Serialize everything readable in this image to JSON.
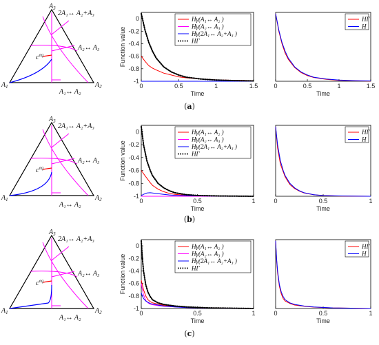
{
  "colors": {
    "H_A1A2": "#ff0000",
    "H_A2A3": "#ff00ff",
    "H_2A1A2A3": "#0000ff",
    "H_Gamma": "#000000",
    "triangle_edge": "#000000",
    "axis": "#000000"
  },
  "triangle": {
    "vertex_labels": {
      "A1": "A",
      "A2": "A",
      "A3": "A"
    },
    "vertex_subs": {
      "A1": "1",
      "A2": "2",
      "A3": "3"
    },
    "reaction_labels": [
      "2A₁↔ A₂+A₃",
      "A₂↔ A₃",
      "A₁↔ A₂"
    ],
    "equilibrium_label": "c",
    "equilibrium_sup": "eq"
  },
  "legend_main": [
    "Hγ(A₁↔ A₂ )",
    "Hγ(A₂↔ A₃ )",
    "Hγ(2A₁↔ A₂+A₃ )",
    "HΓ"
  ],
  "legend_right": [
    "HΓ",
    "H"
  ],
  "panel_captions": [
    "a",
    "b",
    "c"
  ],
  "chart_data": [
    {
      "type": "line",
      "panel": "a",
      "position": "middle",
      "xlabel": "Time",
      "ylabel": "Function value",
      "xlim": [
        0,
        1.5
      ],
      "ylim": [
        -1,
        0.1
      ],
      "xticks": [
        0,
        0.5,
        1,
        1.5
      ],
      "yticks": [
        -1,
        -0.8,
        -0.6,
        -0.4,
        -0.2,
        0
      ],
      "x": [
        0,
        0.05,
        0.1,
        0.15,
        0.2,
        0.3,
        0.4,
        0.5,
        0.6,
        0.8,
        1.0,
        1.25,
        1.5
      ],
      "series": [
        {
          "name": "Hγ(A₁↔ A₂ )",
          "color": "#ff0000",
          "style": "solid",
          "values": [
            -0.6,
            -0.68,
            -0.75,
            -0.79,
            -0.82,
            -0.87,
            -0.9,
            -0.93,
            -0.945,
            -0.965,
            -0.978,
            -0.985,
            -0.99
          ]
        },
        {
          "name": "Hγ(A₂↔ A₃ )",
          "color": "#ff00ff",
          "style": "solid",
          "values": [
            -1.0,
            -1.0,
            -1.0,
            -1.0,
            -1.0,
            -1.0,
            -1.0,
            -1.0,
            -1.0,
            -1.0,
            -1.0,
            -1.0,
            -1.0
          ]
        },
        {
          "name": "Hγ(2A₁↔ A₂+A₃ )",
          "color": "#0000ff",
          "style": "solid",
          "values": [
            -1.0,
            -1.0,
            -1.0,
            -1.0,
            -1.0,
            -1.0,
            -1.0,
            -1.0,
            -1.0,
            -1.0,
            -1.0,
            -1.0,
            -1.0
          ]
        },
        {
          "name": "HΓ",
          "color": "#000000",
          "style": "dotted",
          "values": [
            0.08,
            -0.18,
            -0.38,
            -0.52,
            -0.63,
            -0.77,
            -0.85,
            -0.9,
            -0.935,
            -0.965,
            -0.98,
            -0.99,
            -0.995
          ]
        }
      ]
    },
    {
      "type": "line",
      "panel": "a",
      "position": "right",
      "xlabel": "Time",
      "ylabel": "",
      "xlim": [
        0,
        1.5
      ],
      "ylim": [
        -1,
        0.1
      ],
      "xticks": [
        0,
        0.5,
        1,
        1.5
      ],
      "yticks": [],
      "x": [
        0,
        0.05,
        0.1,
        0.15,
        0.2,
        0.3,
        0.4,
        0.5,
        0.6,
        0.8,
        1.0,
        1.25,
        1.5
      ],
      "series": [
        {
          "name": "HΓ",
          "color": "#ff0000",
          "style": "solid",
          "values": [
            0.08,
            -0.2,
            -0.4,
            -0.55,
            -0.65,
            -0.78,
            -0.86,
            -0.91,
            -0.94,
            -0.97,
            -0.985,
            -0.993,
            -0.997
          ]
        },
        {
          "name": "H",
          "color": "#0000ff",
          "style": "solid",
          "values": [
            0.08,
            -0.18,
            -0.38,
            -0.52,
            -0.63,
            -0.77,
            -0.85,
            -0.9,
            -0.935,
            -0.965,
            -0.98,
            -0.99,
            -0.995
          ]
        }
      ]
    },
    {
      "type": "line",
      "panel": "b",
      "position": "middle",
      "xlabel": "Time",
      "ylabel": "Function value",
      "xlim": [
        0,
        1
      ],
      "ylim": [
        -1,
        0.1
      ],
      "xticks": [
        0,
        0.5,
        1
      ],
      "yticks": [
        -1,
        -0.8,
        -0.6,
        -0.4,
        -0.2,
        0
      ],
      "x": [
        0,
        0.02,
        0.05,
        0.08,
        0.1,
        0.15,
        0.2,
        0.25,
        0.3,
        0.4,
        0.5,
        0.7,
        1.0
      ],
      "series": [
        {
          "name": "Hγ(A₁↔ A₂ )",
          "color": "#ff0000",
          "style": "solid",
          "values": [
            -0.6,
            -0.65,
            -0.72,
            -0.79,
            -0.83,
            -0.89,
            -0.93,
            -0.955,
            -0.97,
            -0.985,
            -0.992,
            -0.997,
            -1.0
          ]
        },
        {
          "name": "Hγ(A₂↔ A₃ )",
          "color": "#ff00ff",
          "style": "solid",
          "values": [
            -1.0,
            -1.0,
            -1.0,
            -1.0,
            -1.0,
            -1.0,
            -1.0,
            -1.0,
            -1.0,
            -1.0,
            -1.0,
            -1.0,
            -1.0
          ]
        },
        {
          "name": "Hγ(2A₁↔ A₂+A₃ )",
          "color": "#0000ff",
          "style": "solid",
          "values": [
            -0.99,
            -0.97,
            -0.95,
            -0.945,
            -0.95,
            -0.96,
            -0.97,
            -0.98,
            -0.985,
            -0.99,
            -0.995,
            -0.998,
            -1.0
          ]
        },
        {
          "name": "HΓ",
          "color": "#000000",
          "style": "dotted",
          "values": [
            0.08,
            -0.2,
            -0.45,
            -0.6,
            -0.68,
            -0.8,
            -0.87,
            -0.915,
            -0.945,
            -0.975,
            -0.988,
            -0.996,
            -1.0
          ]
        }
      ]
    },
    {
      "type": "line",
      "panel": "b",
      "position": "right",
      "xlabel": "Time",
      "ylabel": "",
      "xlim": [
        0,
        1
      ],
      "ylim": [
        -1,
        0.1
      ],
      "xticks": [
        0,
        0.5,
        1
      ],
      "yticks": [],
      "x": [
        0,
        0.02,
        0.05,
        0.08,
        0.1,
        0.15,
        0.2,
        0.25,
        0.3,
        0.4,
        0.5,
        0.7,
        1.0
      ],
      "series": [
        {
          "name": "HΓ",
          "color": "#ff0000",
          "style": "solid",
          "values": [
            0.08,
            -0.25,
            -0.5,
            -0.62,
            -0.7,
            -0.82,
            -0.88,
            -0.92,
            -0.95,
            -0.976,
            -0.99,
            -0.997,
            -1.0
          ]
        },
        {
          "name": "H",
          "color": "#0000ff",
          "style": "solid",
          "values": [
            0.08,
            -0.2,
            -0.45,
            -0.6,
            -0.68,
            -0.8,
            -0.87,
            -0.915,
            -0.945,
            -0.975,
            -0.988,
            -0.996,
            -1.0
          ]
        }
      ]
    },
    {
      "type": "line",
      "panel": "c",
      "position": "middle",
      "xlabel": "Time",
      "ylabel": "Function value",
      "xlim": [
        0,
        1
      ],
      "ylim": [
        -1,
        0.1
      ],
      "xticks": [
        0,
        0.5,
        1
      ],
      "yticks": [
        -1,
        -0.8,
        -0.6,
        -0.4,
        -0.2,
        0
      ],
      "x": [
        0,
        0.01,
        0.02,
        0.04,
        0.06,
        0.08,
        0.1,
        0.15,
        0.2,
        0.3,
        0.4,
        0.6,
        1.0
      ],
      "series": [
        {
          "name": "Hγ(A₁↔ A₂ )",
          "color": "#ff0000",
          "style": "solid",
          "values": [
            -0.55,
            -0.62,
            -0.7,
            -0.8,
            -0.86,
            -0.89,
            -0.91,
            -0.93,
            -0.95,
            -0.97,
            -0.98,
            -0.99,
            -1.0
          ]
        },
        {
          "name": "Hγ(A₂↔ A₃ )",
          "color": "#ff00ff",
          "style": "solid",
          "values": [
            -0.6,
            -0.7,
            -0.78,
            -0.87,
            -0.91,
            -0.93,
            -0.94,
            -0.955,
            -0.965,
            -0.975,
            -0.985,
            -0.993,
            -1.0
          ]
        },
        {
          "name": "Hγ(2A₁↔ A₂+A₃ )",
          "color": "#0000ff",
          "style": "solid",
          "values": [
            -0.75,
            -0.8,
            -0.84,
            -0.88,
            -0.9,
            -0.92,
            -0.93,
            -0.945,
            -0.96,
            -0.975,
            -0.985,
            -0.993,
            -1.0
          ]
        },
        {
          "name": "HΓ",
          "color": "#000000",
          "style": "dotted",
          "values": [
            0.08,
            -0.2,
            -0.4,
            -0.62,
            -0.74,
            -0.81,
            -0.86,
            -0.91,
            -0.935,
            -0.96,
            -0.975,
            -0.99,
            -1.0
          ]
        }
      ]
    },
    {
      "type": "line",
      "panel": "c",
      "position": "right",
      "xlabel": "Time",
      "ylabel": "",
      "xlim": [
        0,
        1
      ],
      "ylim": [
        -1,
        0.1
      ],
      "xticks": [
        0,
        0.5,
        1
      ],
      "yticks": [],
      "x": [
        0,
        0.01,
        0.02,
        0.04,
        0.06,
        0.08,
        0.1,
        0.15,
        0.2,
        0.3,
        0.4,
        0.6,
        1.0
      ],
      "series": [
        {
          "name": "HΓ",
          "color": "#ff0000",
          "style": "solid",
          "values": [
            0.08,
            -0.22,
            -0.43,
            -0.65,
            -0.77,
            -0.84,
            -0.88,
            -0.92,
            -0.945,
            -0.965,
            -0.978,
            -0.99,
            -1.0
          ]
        },
        {
          "name": "H",
          "color": "#0000ff",
          "style": "solid",
          "values": [
            0.08,
            -0.2,
            -0.4,
            -0.62,
            -0.74,
            -0.81,
            -0.86,
            -0.91,
            -0.935,
            -0.96,
            -0.975,
            -0.99,
            -1.0
          ]
        }
      ]
    }
  ]
}
